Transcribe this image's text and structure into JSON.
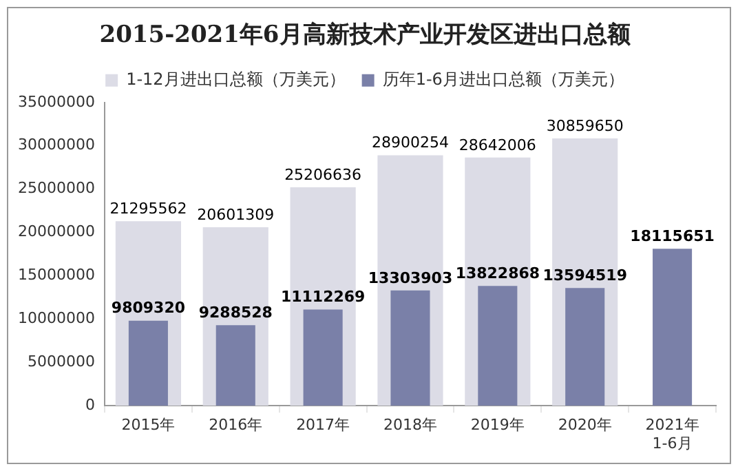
{
  "chart_data": {
    "type": "bar",
    "title": "2015-2021年6月高新技术产业开发区进出口总额",
    "categories": [
      "2015年",
      "2016年",
      "2017年",
      "2018年",
      "2019年",
      "2020年",
      "2021年\n1-6月"
    ],
    "series": [
      {
        "name": "1-12月进出口总额（万美元）",
        "color": "#dcdce6",
        "values": [
          21295562,
          20601309,
          25206636,
          28900254,
          28642006,
          30859650,
          null
        ]
      },
      {
        "name": "历年1-6月进出口总额（万美元）",
        "color": "#7a80a8",
        "values": [
          9809320,
          9288528,
          11112269,
          13303903,
          13822868,
          13594519,
          18115651
        ]
      }
    ],
    "ylim": [
      0,
      35000000
    ],
    "yticks": [
      0,
      5000000,
      10000000,
      15000000,
      20000000,
      25000000,
      30000000,
      35000000
    ],
    "grid": false,
    "legend": "top",
    "data_labels": true
  }
}
